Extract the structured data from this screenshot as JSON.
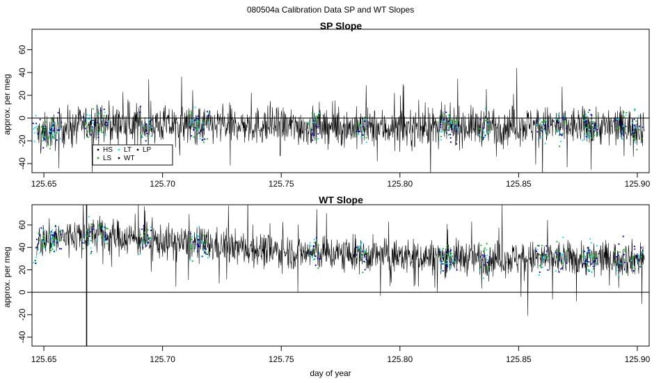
{
  "figure": {
    "suptitle": "080504a   Calibration Data SP and WT Slopes",
    "xlabel": "day of year"
  },
  "chart_data": [
    {
      "type": "line",
      "title": "SP Slope",
      "ylabel": "approx. per meg",
      "xlim": [
        125.645,
        125.905
      ],
      "ylim": [
        -48,
        78
      ],
      "xticks": [
        125.65,
        125.7,
        125.75,
        125.8,
        125.85,
        125.9
      ],
      "xtick_labels": [
        "125.65",
        "125.70",
        "125.75",
        "125.80",
        "125.85",
        "125.90"
      ],
      "yticks": [
        -40,
        -20,
        0,
        20,
        40,
        60
      ],
      "ytick_labels": [
        "-40",
        "-20",
        "0",
        "20",
        "40",
        "60"
      ],
      "hline": 0,
      "grid": false,
      "legend": {
        "position": "lower-left",
        "entries": [
          {
            "label": "HS",
            "color": "#000000"
          },
          {
            "label": "LT",
            "color": "#00e5ff"
          },
          {
            "label": "LP",
            "color": "#000000"
          },
          {
            "label": "LS",
            "color": "#00c000"
          },
          {
            "label": "WT",
            "color": "#000000"
          }
        ]
      },
      "series_style": {
        "line": "#000000",
        "HS": "#0000cc",
        "LS": "#00c000",
        "LT": "#00e5ff"
      },
      "noise_amplitude": 15,
      "baseline": [
        [
          125.647,
          -15
        ],
        [
          125.66,
          -8
        ],
        [
          125.67,
          -5
        ],
        [
          125.7,
          -6
        ],
        [
          125.75,
          -7
        ],
        [
          125.8,
          -9
        ],
        [
          125.85,
          -6
        ],
        [
          125.9,
          -8
        ],
        [
          125.903,
          -8
        ]
      ],
      "calibration_x": [
        125.648,
        125.652,
        125.655,
        125.669,
        125.675,
        125.693,
        125.713,
        125.717,
        125.764,
        125.784,
        125.819,
        125.822,
        125.836,
        125.86,
        125.868,
        125.879,
        125.881,
        125.893,
        125.9
      ]
    },
    {
      "type": "line",
      "title": "WT Slope",
      "ylabel": "approx. per meg",
      "xlim": [
        125.645,
        125.905
      ],
      "ylim": [
        -48,
        78
      ],
      "xticks": [
        125.65,
        125.7,
        125.75,
        125.8,
        125.85,
        125.9
      ],
      "xtick_labels": [
        "125.65",
        "125.70",
        "125.75",
        "125.80",
        "125.85",
        "125.90"
      ],
      "yticks": [
        -40,
        -20,
        0,
        20,
        40,
        60
      ],
      "ytick_labels": [
        "-40",
        "-20",
        "0",
        "20",
        "40",
        "60"
      ],
      "hline": 0,
      "grid": false,
      "series_style": {
        "line": "#000000",
        "HS": "#0000cc",
        "LS": "#00c000",
        "LT": "#00e5ff"
      },
      "noise_amplitude": 14,
      "baseline": [
        [
          125.647,
          45
        ],
        [
          125.66,
          50
        ],
        [
          125.67,
          52
        ],
        [
          125.7,
          45
        ],
        [
          125.73,
          40
        ],
        [
          125.76,
          35
        ],
        [
          125.8,
          32
        ],
        [
          125.85,
          30
        ],
        [
          125.88,
          30
        ],
        [
          125.903,
          30
        ]
      ],
      "spike_x": 125.668,
      "calibration_x": [
        125.648,
        125.652,
        125.655,
        125.669,
        125.675,
        125.693,
        125.713,
        125.717,
        125.764,
        125.784,
        125.819,
        125.822,
        125.836,
        125.86,
        125.868,
        125.879,
        125.881,
        125.893,
        125.9
      ]
    }
  ]
}
